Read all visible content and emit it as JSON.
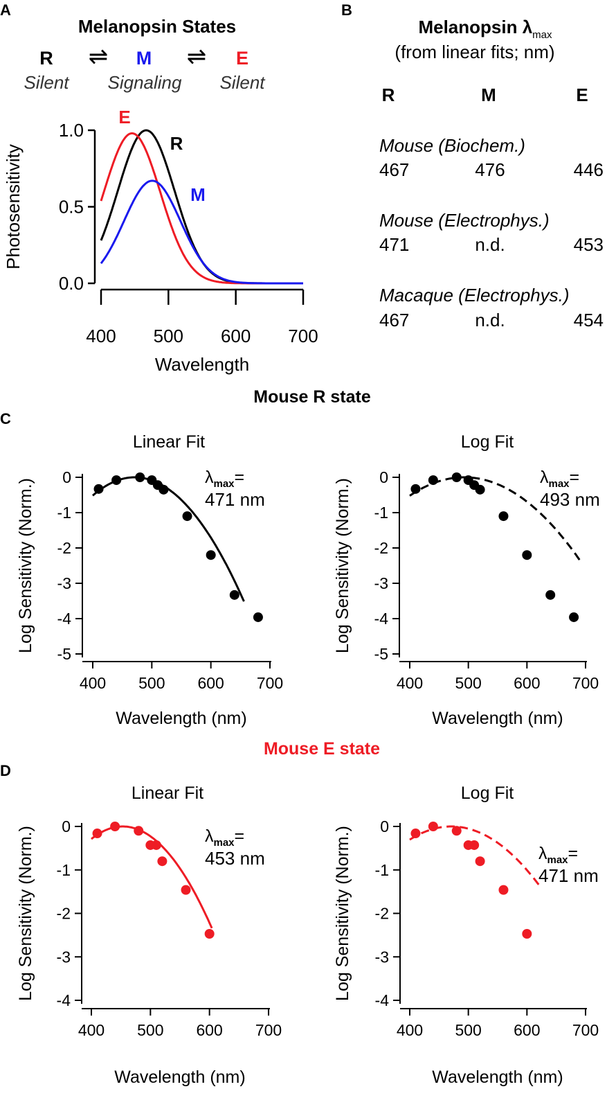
{
  "colors": {
    "black": "#000000",
    "red": "#ee1c25",
    "blue": "#1a1aee"
  },
  "panel_letters": {
    "a": "A",
    "b": "B",
    "c": "C",
    "d": "D"
  },
  "panel_a": {
    "title": "Melanopsin States",
    "states": [
      {
        "name": "R",
        "role": "Silent",
        "color": "#000000"
      },
      {
        "name": "M",
        "role": "Signaling",
        "color": "#1a1aee"
      },
      {
        "name": "E",
        "role": "Silent",
        "color": "#ee1c25"
      }
    ],
    "equilibrium_symbol": "⇌"
  },
  "panel_b": {
    "title": "Melanopsin λ",
    "title_subscript": "max",
    "subtitle": "(from linear fits; nm)",
    "columns": [
      "R",
      "M",
      "E"
    ],
    "groups": [
      {
        "label": "Mouse (Biochem.)",
        "values": [
          "467",
          "476",
          "446"
        ]
      },
      {
        "label": "Mouse (Electrophys.)",
        "values": [
          "471",
          "n.d.",
          "453"
        ]
      },
      {
        "label": "Macaque (Electrophys.)",
        "values": [
          "467",
          "n.d.",
          "454"
        ]
      }
    ]
  },
  "section_c_title": "Mouse R state",
  "section_d_title": "Mouse E state",
  "chart_data": [
    {
      "id": "A",
      "type": "line",
      "xlabel": "Wavelength",
      "ylabel": "Photosensitivity",
      "xlim": [
        400,
        700
      ],
      "ylim": [
        0,
        1.0
      ],
      "xticks": [
        "400",
        "500",
        "600",
        "700"
      ],
      "yticks": [
        "0.0",
        "0.5",
        "1.0"
      ],
      "series": [
        {
          "name": "R",
          "peak_nm": 467,
          "amplitude": 1.0,
          "color": "#000000",
          "x_start": 400,
          "x_end": 700
        },
        {
          "name": "E",
          "peak_nm": 446,
          "amplitude": 0.98,
          "color": "#ee1c25",
          "x_start": 400,
          "x_end": 700
        },
        {
          "name": "M",
          "peak_nm": 476,
          "amplitude": 0.67,
          "color": "#1a1aee",
          "x_start": 400,
          "x_end": 700
        }
      ]
    },
    {
      "id": "C-linear",
      "type": "scatter",
      "title": "Linear Fit",
      "xlabel": "Wavelength (nm)",
      "ylabel": "Log Sensitivity (Norm.)",
      "xlim": [
        400,
        700
      ],
      "ylim": [
        -5,
        0
      ],
      "xticks": [
        "400",
        "500",
        "600",
        "700"
      ],
      "yticks": [
        "0",
        "-1",
        "-2",
        "-3",
        "-4",
        "-5"
      ],
      "points": {
        "x": [
          410,
          440,
          480,
          500,
          510,
          520,
          560,
          600,
          640,
          680
        ],
        "y": [
          -0.33,
          -0.08,
          0,
          -0.08,
          -0.22,
          -0.35,
          -1.1,
          -2.2,
          -3.33,
          -3.96
        ]
      },
      "color": "#000000",
      "fit": {
        "kind": "linear",
        "lambda_max": 471,
        "x_start": 400,
        "x_end": 656,
        "dashed": false
      },
      "annotation_label": "λ",
      "annotation_sub": "max",
      "annotation_eq": "=",
      "annotation_value": "471 nm"
    },
    {
      "id": "C-log",
      "type": "scatter",
      "title": "Log Fit",
      "xlabel": "Wavelength (nm)",
      "ylabel": "Log Sensitivity (Norm.)",
      "xlim": [
        400,
        700
      ],
      "ylim": [
        -5,
        0
      ],
      "xticks": [
        "400",
        "500",
        "600",
        "700"
      ],
      "yticks": [
        "0",
        "-1",
        "-2",
        "-3",
        "-4",
        "-5"
      ],
      "points": {
        "x": [
          410,
          440,
          480,
          500,
          510,
          520,
          560,
          600,
          640,
          680
        ],
        "y": [
          -0.33,
          -0.08,
          0,
          -0.08,
          -0.22,
          -0.35,
          -1.1,
          -2.2,
          -3.33,
          -3.96
        ]
      },
      "color": "#000000",
      "fit": {
        "kind": "log",
        "lambda_max": 493,
        "x_start": 400,
        "x_end": 692,
        "dashed": true
      },
      "annotation_label": "λ",
      "annotation_sub": "max",
      "annotation_eq": "=",
      "annotation_value": "493 nm"
    },
    {
      "id": "D-linear",
      "type": "scatter",
      "title": "Linear Fit",
      "xlabel": "Wavelength (nm)",
      "ylabel": "Log Sensitivity (Norm.)",
      "xlim": [
        400,
        700
      ],
      "ylim": [
        -4,
        0
      ],
      "xticks": [
        "400",
        "500",
        "600",
        "700"
      ],
      "yticks": [
        "0",
        "-1",
        "-2",
        "-3",
        "-4"
      ],
      "points": {
        "x": [
          410,
          440,
          480,
          500,
          510,
          520,
          560,
          600
        ],
        "y": [
          -0.16,
          0,
          -0.1,
          -0.43,
          -0.43,
          -0.8,
          -1.46,
          -2.47
        ]
      },
      "color": "#ee1c25",
      "fit": {
        "kind": "linear",
        "lambda_max": 453,
        "x_start": 400,
        "x_end": 605,
        "dashed": false
      },
      "annotation_label": "λ",
      "annotation_sub": "max",
      "annotation_eq": "=",
      "annotation_value": "453 nm"
    },
    {
      "id": "D-log",
      "type": "scatter",
      "title": "Log Fit",
      "xlabel": "Wavelength (nm)",
      "ylabel": "Log Sensitivity (Norm.)",
      "xlim": [
        400,
        700
      ],
      "ylim": [
        -4,
        0
      ],
      "xticks": [
        "400",
        "500",
        "600",
        "700"
      ],
      "yticks": [
        "0",
        "-1",
        "-2",
        "-3",
        "-4"
      ],
      "points": {
        "x": [
          410,
          440,
          480,
          500,
          510,
          520,
          560,
          600
        ],
        "y": [
          -0.16,
          0,
          -0.1,
          -0.43,
          -0.43,
          -0.8,
          -1.46,
          -2.47
        ]
      },
      "color": "#ee1c25",
      "fit": {
        "kind": "log",
        "lambda_max": 471,
        "x_start": 400,
        "x_end": 622,
        "dashed": true
      },
      "annotation_label": "λ",
      "annotation_sub": "max",
      "annotation_eq": "=",
      "annotation_value": "471 nm"
    }
  ]
}
